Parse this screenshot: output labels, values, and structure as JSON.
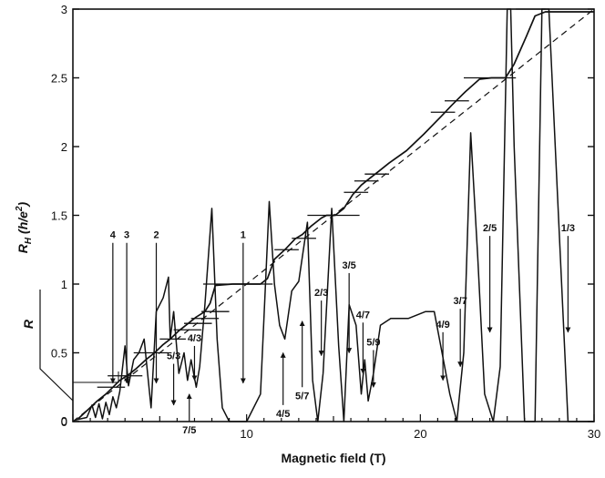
{
  "chart_data": {
    "type": "line",
    "xlabel": "Magnetic field (T)",
    "ylabel_hall": "R_H (h/e^2)",
    "ylabel_hall_parts": {
      "symbol": "R",
      "subscript": "H",
      "unit": "(h/e",
      "exp": "2",
      "close": ")"
    },
    "ylabel_r": "R",
    "xlim": [
      0,
      30
    ],
    "ylim": [
      0,
      3
    ],
    "x_ticks": [
      "10",
      "20",
      "30"
    ],
    "y_ticks": [
      "0",
      "0.5",
      "1",
      "1.5",
      "2",
      "2.5",
      "3"
    ],
    "r_ticks": [
      "0"
    ],
    "grid": false,
    "series": [
      {
        "kind": "hall",
        "x": [
          0.3,
          0.9,
          1.4,
          1.9,
          2.3,
          2.7,
          3.2,
          3.6,
          4.2,
          4.7,
          5.2,
          5.6,
          6.1,
          6.6,
          7.1,
          7.6,
          7.9,
          8.2,
          9.2,
          10.2,
          10.8,
          11.2,
          11.6,
          12.2,
          12.8,
          13.2,
          13.7,
          14.3,
          14.6,
          15.1,
          15.6,
          16.1,
          16.6,
          17.1,
          17.6,
          18.2,
          19.2,
          20.2,
          21.2,
          21.8,
          22.6,
          23.4,
          24.1,
          24.6,
          24.9,
          25.4,
          26.1,
          26.6,
          27.2,
          28.5,
          30.0
        ],
        "y": [
          0.02,
          0.09,
          0.15,
          0.2,
          0.25,
          0.3,
          0.34,
          0.38,
          0.45,
          0.5,
          0.56,
          0.6,
          0.66,
          0.71,
          0.76,
          0.8,
          0.86,
          0.99,
          1.0,
          1.0,
          1.0,
          1.04,
          1.18,
          1.25,
          1.33,
          1.36,
          1.42,
          1.48,
          1.5,
          1.5,
          1.55,
          1.65,
          1.72,
          1.77,
          1.82,
          1.88,
          1.97,
          2.09,
          2.22,
          2.3,
          2.4,
          2.49,
          2.5,
          2.5,
          2.5,
          2.6,
          2.8,
          2.95,
          2.98,
          2.98,
          2.98
        ]
      },
      {
        "kind": "resistance",
        "x": [
          0.1,
          0.8,
          1.1,
          1.3,
          1.5,
          1.7,
          1.9,
          2.1,
          2.3,
          2.5,
          2.7,
          3.0,
          3.2,
          3.5,
          3.8,
          4.1,
          4.5,
          4.8,
          5.2,
          5.5,
          5.6,
          5.8,
          6.1,
          6.4,
          6.6,
          6.8,
          7.1,
          7.3,
          7.6,
          8.0,
          8.3,
          8.6,
          9.0,
          10.0,
          10.8,
          11.3,
          11.6,
          11.9,
          12.2,
          12.6,
          13.0,
          13.5,
          13.8,
          14.1,
          14.4,
          14.9,
          15.3,
          15.6,
          15.9,
          16.3,
          16.6,
          16.8,
          17.0,
          17.3,
          17.7,
          18.3,
          19.3,
          20.3,
          20.8,
          21.1,
          21.4,
          21.7,
          22.1,
          22.5,
          22.9,
          23.3,
          23.7,
          24.2,
          24.6,
          25.0,
          25.2,
          25.4,
          26.0,
          26.6,
          27.0,
          27.4,
          28.5,
          29.5,
          30.0
        ],
        "y": [
          0.01,
          0.03,
          0.12,
          0.03,
          0.13,
          0.02,
          0.14,
          0.05,
          0.18,
          0.1,
          0.22,
          0.55,
          0.26,
          0.45,
          0.5,
          0.6,
          0.1,
          0.8,
          0.9,
          1.05,
          0.6,
          0.8,
          0.35,
          0.5,
          0.3,
          0.45,
          0.25,
          0.4,
          0.85,
          1.55,
          0.6,
          0.1,
          0.0,
          0.0,
          0.2,
          1.6,
          1.0,
          0.7,
          0.6,
          0.95,
          1.02,
          1.45,
          0.3,
          0.0,
          0.35,
          1.55,
          0.55,
          0.0,
          0.85,
          0.7,
          0.2,
          0.45,
          0.15,
          0.35,
          0.7,
          0.75,
          0.75,
          0.8,
          0.8,
          0.6,
          0.4,
          0.2,
          0.0,
          0.5,
          2.1,
          1.2,
          0.2,
          0.0,
          0.4,
          3.0,
          3.0,
          2.0,
          0.0,
          0.0,
          3.0,
          3.0,
          0.0,
          0.0,
          0.0
        ]
      }
    ],
    "ideal_line": {
      "style": "dashed",
      "from": [
        0,
        0
      ],
      "to": [
        30,
        3
      ]
    },
    "plateaus": [
      {
        "y": 0.25,
        "x": [
          1.4,
          3.0
        ]
      },
      {
        "y": 0.333,
        "x": [
          2.0,
          4.0
        ]
      },
      {
        "y": 0.5,
        "x": [
          3.5,
          5.5
        ]
      },
      {
        "y": 0.6,
        "x": [
          5.0,
          6.5
        ]
      },
      {
        "y": 0.667,
        "x": [
          5.8,
          7.4
        ]
      },
      {
        "y": 0.714,
        "x": [
          6.4,
          8.0
        ]
      },
      {
        "y": 0.75,
        "x": [
          6.8,
          8.4
        ]
      },
      {
        "y": 0.8,
        "x": [
          7.4,
          9.0
        ]
      },
      {
        "y": 1.0,
        "x": [
          7.5,
          11.5
        ]
      },
      {
        "y": 1.25,
        "x": [
          11.6,
          13.0
        ]
      },
      {
        "y": 1.333,
        "x": [
          12.6,
          14.0
        ]
      },
      {
        "y": 1.5,
        "x": [
          13.5,
          16.5
        ]
      },
      {
        "y": 1.667,
        "x": [
          15.6,
          17.0
        ]
      },
      {
        "y": 1.75,
        "x": [
          16.2,
          17.6
        ]
      },
      {
        "y": 1.8,
        "x": [
          16.8,
          18.2
        ]
      },
      {
        "y": 2.25,
        "x": [
          20.6,
          22.0
        ]
      },
      {
        "y": 2.333,
        "x": [
          21.4,
          22.8
        ]
      },
      {
        "y": 2.5,
        "x": [
          22.5,
          25.5
        ]
      },
      {
        "y": 3.0,
        "x": [
          25.5,
          27.2
        ]
      }
    ],
    "annotations": [
      {
        "label": "4",
        "x": 2.3,
        "y_top": 1.3,
        "y_tip": 0.28,
        "dir": "down",
        "label_pos": "above"
      },
      {
        "label": "3",
        "x": 3.1,
        "y_top": 1.3,
        "y_tip": 0.28,
        "dir": "down",
        "label_pos": "above"
      },
      {
        "label": "2",
        "x": 4.8,
        "y_top": 1.3,
        "y_tip": 0.28,
        "dir": "down",
        "label_pos": "above"
      },
      {
        "label": "5/3",
        "x": 5.8,
        "y_top": 0.42,
        "y_tip": 0.12,
        "dir": "down",
        "label_pos": "above"
      },
      {
        "label": "4/3",
        "x": 7.0,
        "y_top": 0.55,
        "y_tip": 0.3,
        "dir": "down",
        "label_pos": "above"
      },
      {
        "label": "7/5",
        "x": 6.7,
        "y_top": -0.02,
        "y_tip": 0.2,
        "dir": "up",
        "label_pos": "below"
      },
      {
        "label": "1",
        "x": 9.8,
        "y_top": 1.3,
        "y_tip": 0.28,
        "dir": "down",
        "label_pos": "above"
      },
      {
        "label": "4/5",
        "x": 12.1,
        "y_top": 0.12,
        "y_tip": 0.5,
        "dir": "up",
        "label_pos": "below"
      },
      {
        "label": "5/7",
        "x": 13.2,
        "y_top": 0.25,
        "y_tip": 0.73,
        "dir": "up",
        "label_pos": "below"
      },
      {
        "label": "2/3",
        "x": 14.3,
        "y_top": 0.88,
        "y_tip": 0.48,
        "dir": "down",
        "label_pos": "above"
      },
      {
        "label": "3/5",
        "x": 15.9,
        "y_top": 1.08,
        "y_tip": 0.5,
        "dir": "down",
        "label_pos": "above"
      },
      {
        "label": "4/7",
        "x": 16.7,
        "y_top": 0.72,
        "y_tip": 0.35,
        "dir": "down",
        "label_pos": "above"
      },
      {
        "label": "5/9",
        "x": 17.3,
        "y_top": 0.52,
        "y_tip": 0.25,
        "dir": "down",
        "label_pos": "above"
      },
      {
        "label": "4/9",
        "x": 21.3,
        "y_top": 0.65,
        "y_tip": 0.3,
        "dir": "down",
        "label_pos": "above"
      },
      {
        "label": "3/7",
        "x": 22.3,
        "y_top": 0.82,
        "y_tip": 0.4,
        "dir": "down",
        "label_pos": "above"
      },
      {
        "label": "2/5",
        "x": 24.0,
        "y_top": 1.35,
        "y_tip": 0.65,
        "dir": "down",
        "label_pos": "above"
      },
      {
        "label": "1/3",
        "x": 28.5,
        "y_top": 1.35,
        "y_tip": 0.65,
        "dir": "down",
        "label_pos": "above"
      }
    ]
  }
}
